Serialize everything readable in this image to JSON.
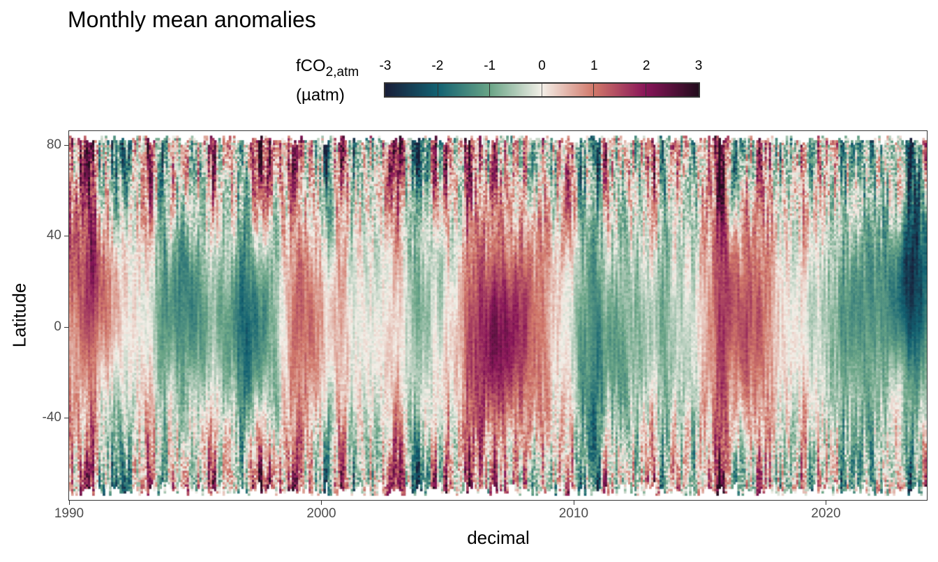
{
  "chart_data": {
    "type": "heatmap",
    "title": "Monthly mean anomalies",
    "xlabel": "decimal",
    "ylabel": "Latitude",
    "xlim": [
      1990,
      2024
    ],
    "ylim": [
      -76,
      86
    ],
    "x_ticks": [
      "1990",
      "2000",
      "2010",
      "2020"
    ],
    "y_ticks": [
      "80",
      "40",
      "0",
      "-40"
    ],
    "legend": {
      "title_main": "fCO",
      "title_sub": "2,atm",
      "title_unit": "(µatm)",
      "placement": "top",
      "range": [
        -3,
        3
      ],
      "ticks": [
        "-3",
        "-2",
        "-1",
        "0",
        "1",
        "2",
        "3"
      ]
    },
    "colorscale": [
      "#191f3a",
      "#136272",
      "#6aa587",
      "#f4f0e9",
      "#d1786a",
      "#881559",
      "#240d1e"
    ],
    "resolution": {
      "x_step_years": 0.0833,
      "y_step_degrees": 1
    },
    "anomaly_episodes": [
      {
        "x": 1991.0,
        "y": 20,
        "value": 1.4
      },
      {
        "x": 1994.5,
        "y": 10,
        "value": -1.5
      },
      {
        "x": 1997.5,
        "y": 0,
        "value": -2.3
      },
      {
        "x": 1999.0,
        "y": 0,
        "value": 1.5
      },
      {
        "x": 2004.5,
        "y": 10,
        "value": -0.6
      },
      {
        "x": 2006.5,
        "y": -5,
        "value": 1.6
      },
      {
        "x": 2008.0,
        "y": 0,
        "value": 1.2
      },
      {
        "x": 2011.0,
        "y": -10,
        "value": -1.3
      },
      {
        "x": 2013.5,
        "y": 0,
        "value": -0.7
      },
      {
        "x": 2016.5,
        "y": 5,
        "value": 1.6
      },
      {
        "x": 2021.0,
        "y": 0,
        "value": -1.1
      },
      {
        "x": 2023.5,
        "y": 20,
        "value": -2.3
      }
    ]
  }
}
